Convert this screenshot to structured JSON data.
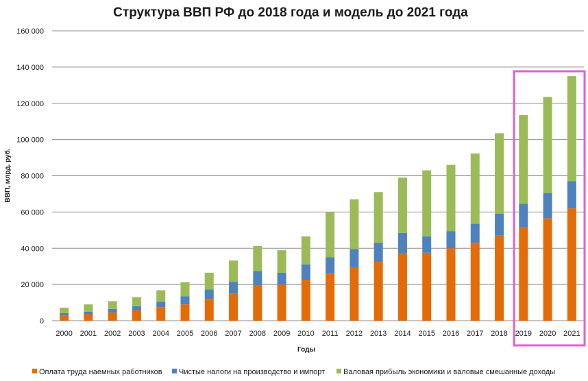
{
  "chart_data": {
    "type": "bar",
    "stacked": true,
    "title": "Структура ВВП РФ до 2018 года и модель до 2021 года",
    "xlabel": "Годы",
    "ylabel": "ВВП, млрд. руб.",
    "ylim": [
      0,
      160000
    ],
    "yticks": [
      0,
      20000,
      40000,
      60000,
      80000,
      100000,
      120000,
      140000,
      160000
    ],
    "ytick_labels": [
      "0",
      "20 000",
      "40 000",
      "60 000",
      "80 000",
      "100 000",
      "120 000",
      "140 000",
      "160 000"
    ],
    "grid": true,
    "legend_position": "bottom",
    "categories": [
      "2000",
      "2001",
      "2002",
      "2003",
      "2004",
      "2005",
      "2006",
      "2007",
      "2008",
      "2009",
      "2010",
      "2011",
      "2012",
      "2013",
      "2014",
      "2015",
      "2016",
      "2017",
      "2018",
      "2019",
      "2020",
      "2021"
    ],
    "series": [
      {
        "name": "Оплата труда наемных работников",
        "color": "#e36c09",
        "values": [
          3000,
          3600,
          4500,
          5700,
          7500,
          9000,
          12000,
          15000,
          19500,
          20000,
          22500,
          26000,
          29500,
          32500,
          37000,
          37500,
          40000,
          43000,
          47000,
          51500,
          56500,
          62000
        ]
      },
      {
        "name": "Чистые налоги на производство и импорт",
        "color": "#4f81bd",
        "values": [
          1200,
          1400,
          2000,
          2300,
          3000,
          4500,
          5200,
          6500,
          8000,
          6500,
          8500,
          9000,
          10000,
          10500,
          11500,
          9000,
          9500,
          10500,
          12000,
          13000,
          14000,
          15000
        ]
      },
      {
        "name": "Валовая прибыль экономики и валовые смешанные доходы",
        "color": "#9bbb59",
        "values": [
          3000,
          4000,
          4300,
          5000,
          6300,
          7700,
          9300,
          11700,
          13700,
          12400,
          15500,
          25000,
          27500,
          28000,
          30500,
          36500,
          36500,
          38800,
          44500,
          49000,
          53000,
          58000
        ]
      }
    ],
    "highlight": {
      "categories": [
        "2019",
        "2020",
        "2021"
      ],
      "color": "#e05fd6"
    }
  }
}
